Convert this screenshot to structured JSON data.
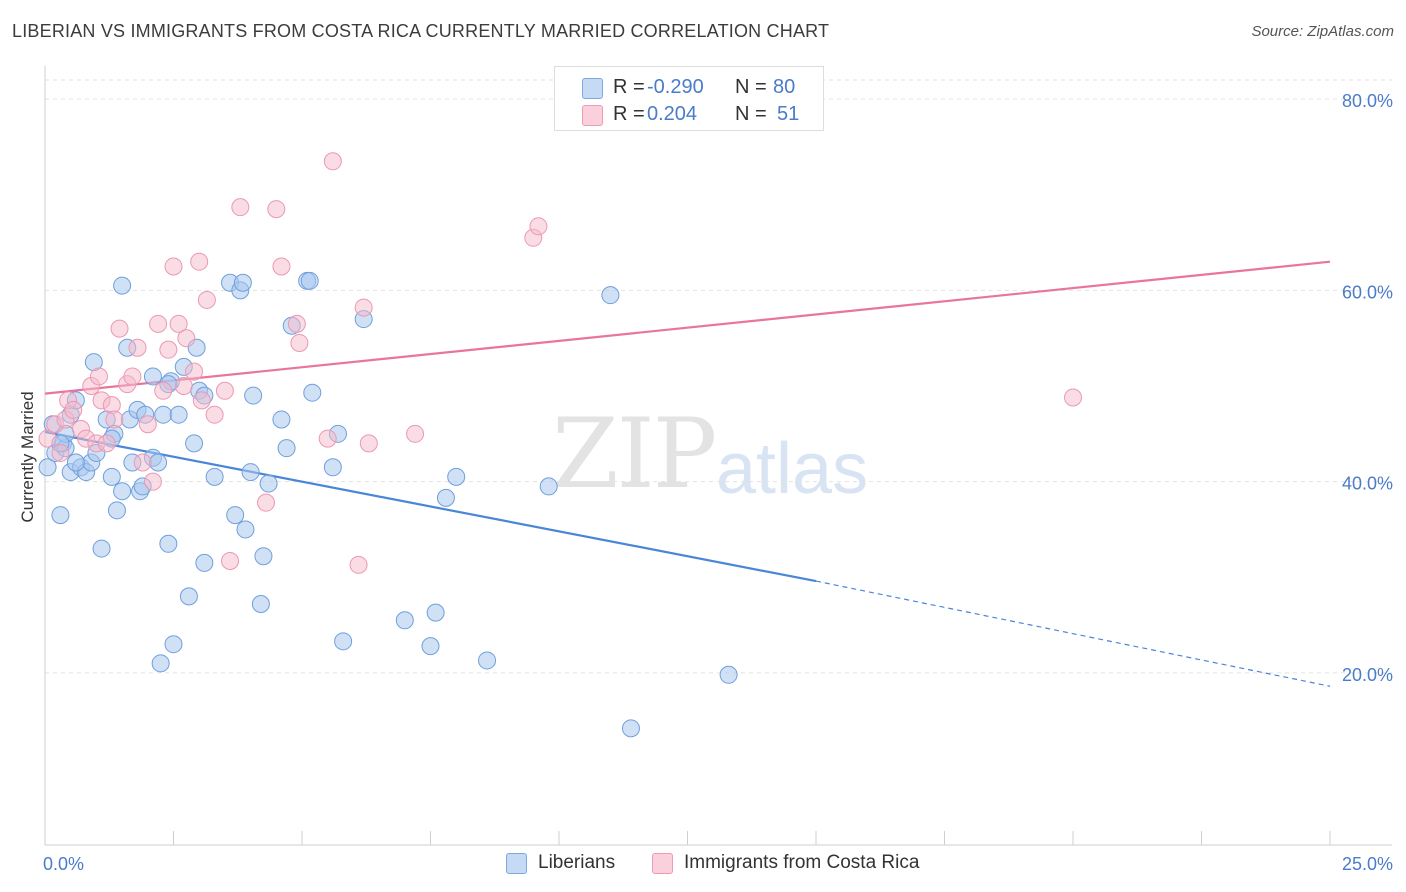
{
  "title": "LIBERIAN VS IMMIGRANTS FROM COSTA RICA CURRENTLY MARRIED CORRELATION CHART",
  "source": "Source: ZipAtlas.com",
  "watermark": {
    "zip": "ZIP",
    "atlas": "atlas"
  },
  "legend": {
    "rows": [
      {
        "r_label": "R =",
        "r_value": "-0.290",
        "n_label": "N =",
        "n_value": "80",
        "color": "#a9c8ef"
      },
      {
        "r_label": "R =",
        "r_value": "0.204",
        "n_label": "N =",
        "n_value": "51",
        "color": "#f6b9cc"
      }
    ]
  },
  "bottom_legend": [
    {
      "label": "Liberians",
      "color": "#a9c8ef"
    },
    {
      "label": "Immigrants from Costa Rica",
      "color": "#f6b9cc"
    }
  ],
  "chart_data": {
    "type": "scatter",
    "ylabel": "Currently Married",
    "x_range": [
      0,
      25
    ],
    "y_range": [
      2,
      82
    ],
    "x_tick_labels": [
      "0.0%",
      "25.0%"
    ],
    "y_ticks": [
      20,
      40,
      60,
      80
    ],
    "y_tick_labels": [
      "20.0%",
      "40.0%",
      "60.0%",
      "80.0%"
    ],
    "grid": true,
    "colors": {
      "liberians": "#4a86d8",
      "costa_rica": "#e8769b",
      "tick": "#4a7cc9"
    },
    "series": [
      {
        "name": "Liberians",
        "trend": {
          "x0": 0,
          "y0": 45.2,
          "x1": 15,
          "y1": 29.6,
          "x_dash_end": 25,
          "y_dash_end": 18.6
        },
        "points": [
          [
            0.05,
            41.5
          ],
          [
            0.2,
            43
          ],
          [
            0.3,
            36.5
          ],
          [
            0.35,
            44
          ],
          [
            0.4,
            43.5
          ],
          [
            0.4,
            45
          ],
          [
            0.5,
            41
          ],
          [
            0.5,
            47
          ],
          [
            0.6,
            48.5
          ],
          [
            0.7,
            41.5
          ],
          [
            0.8,
            41
          ],
          [
            0.9,
            42
          ],
          [
            0.95,
            52.5
          ],
          [
            1.0,
            43
          ],
          [
            1.1,
            33
          ],
          [
            1.2,
            46.5
          ],
          [
            1.3,
            40.5
          ],
          [
            1.35,
            45
          ],
          [
            1.4,
            37
          ],
          [
            1.5,
            60.5
          ],
          [
            1.5,
            39
          ],
          [
            1.6,
            54
          ],
          [
            1.65,
            46.5
          ],
          [
            1.7,
            42
          ],
          [
            1.8,
            47.5
          ],
          [
            1.85,
            39
          ],
          [
            1.9,
            39.5
          ],
          [
            1.95,
            47
          ],
          [
            2.1,
            51
          ],
          [
            2.1,
            42.5
          ],
          [
            2.2,
            42
          ],
          [
            2.25,
            21
          ],
          [
            2.3,
            47
          ],
          [
            2.4,
            33.5
          ],
          [
            2.45,
            50.5
          ],
          [
            2.5,
            23
          ],
          [
            2.6,
            47
          ],
          [
            2.7,
            52
          ],
          [
            2.8,
            28
          ],
          [
            2.9,
            44
          ],
          [
            2.95,
            54
          ],
          [
            3.0,
            49.5
          ],
          [
            3.1,
            31.5
          ],
          [
            3.3,
            40.5
          ],
          [
            3.6,
            60.8
          ],
          [
            3.7,
            36.5
          ],
          [
            3.8,
            60
          ],
          [
            3.85,
            60.8
          ],
          [
            3.9,
            35
          ],
          [
            4.0,
            41
          ],
          [
            4.05,
            49
          ],
          [
            4.2,
            27.2
          ],
          [
            4.25,
            32.2
          ],
          [
            4.35,
            39.8
          ],
          [
            4.6,
            46.5
          ],
          [
            4.7,
            43.5
          ],
          [
            4.8,
            56.3
          ],
          [
            5.1,
            61
          ],
          [
            5.15,
            61
          ],
          [
            5.2,
            49.3
          ],
          [
            5.6,
            41.5
          ],
          [
            5.7,
            45
          ],
          [
            5.8,
            23.3
          ],
          [
            6.2,
            57
          ],
          [
            7.0,
            25.5
          ],
          [
            7.5,
            22.8
          ],
          [
            7.6,
            26.3
          ],
          [
            7.8,
            38.3
          ],
          [
            8.0,
            40.5
          ],
          [
            8.6,
            21.3
          ],
          [
            9.8,
            39.5
          ],
          [
            11.0,
            59.5
          ],
          [
            11.4,
            14.2
          ],
          [
            13.3,
            19.8
          ],
          [
            0.15,
            46
          ],
          [
            0.3,
            44
          ],
          [
            0.6,
            42
          ],
          [
            1.3,
            44.5
          ],
          [
            3.1,
            49
          ],
          [
            2.4,
            50.2
          ]
        ]
      },
      {
        "name": "Immigrants from Costa Rica",
        "trend": {
          "x0": 0,
          "y0": 49.2,
          "x1": 25,
          "y1": 63
        },
        "points": [
          [
            0.05,
            44.5
          ],
          [
            0.2,
            46
          ],
          [
            0.3,
            43
          ],
          [
            0.4,
            46.5
          ],
          [
            0.45,
            48.5
          ],
          [
            0.55,
            47.5
          ],
          [
            0.7,
            45.5
          ],
          [
            0.8,
            44.5
          ],
          [
            0.9,
            50
          ],
          [
            1.0,
            44
          ],
          [
            1.05,
            51
          ],
          [
            1.1,
            48.5
          ],
          [
            1.2,
            44
          ],
          [
            1.3,
            48
          ],
          [
            1.35,
            46.5
          ],
          [
            1.45,
            56
          ],
          [
            1.6,
            50.2
          ],
          [
            1.7,
            51
          ],
          [
            1.8,
            54
          ],
          [
            1.9,
            42
          ],
          [
            2.0,
            46
          ],
          [
            2.1,
            40
          ],
          [
            2.2,
            56.5
          ],
          [
            2.3,
            49.5
          ],
          [
            2.4,
            53.8
          ],
          [
            2.5,
            62.5
          ],
          [
            2.6,
            56.5
          ],
          [
            2.7,
            50
          ],
          [
            2.75,
            55
          ],
          [
            2.9,
            51.5
          ],
          [
            3.0,
            63
          ],
          [
            3.05,
            48.5
          ],
          [
            3.15,
            59
          ],
          [
            3.3,
            47
          ],
          [
            3.5,
            49.5
          ],
          [
            3.6,
            31.7
          ],
          [
            3.8,
            68.7
          ],
          [
            4.3,
            37.8
          ],
          [
            4.5,
            68.5
          ],
          [
            4.6,
            62.5
          ],
          [
            4.9,
            56.5
          ],
          [
            4.95,
            54.5
          ],
          [
            5.5,
            44.5
          ],
          [
            5.6,
            73.5
          ],
          [
            6.1,
            31.3
          ],
          [
            6.2,
            58.2
          ],
          [
            6.3,
            44
          ],
          [
            7.2,
            45
          ],
          [
            9.5,
            65.5
          ],
          [
            9.6,
            66.7
          ],
          [
            20.0,
            48.8
          ]
        ]
      }
    ]
  }
}
